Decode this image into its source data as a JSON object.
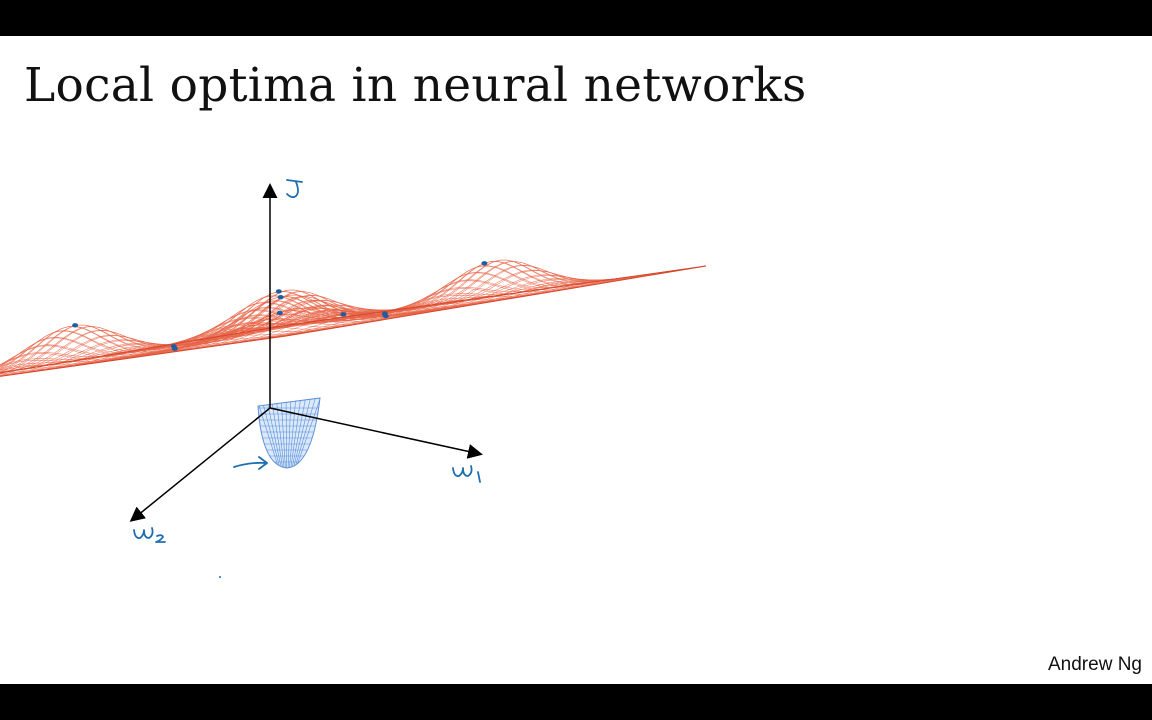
{
  "slide": {
    "title": "Local optima in neural networks",
    "author": "Andrew Ng"
  },
  "diagram": {
    "axes": [
      "J",
      "w1",
      "w2"
    ],
    "surface": "cost surface with several bumps and one deep well",
    "colors": {
      "surface": "#e8664a",
      "well": "#5a8fd8",
      "axis": "#000000",
      "annotation": "#1f6fb0"
    },
    "local_optima_markers": 10
  }
}
